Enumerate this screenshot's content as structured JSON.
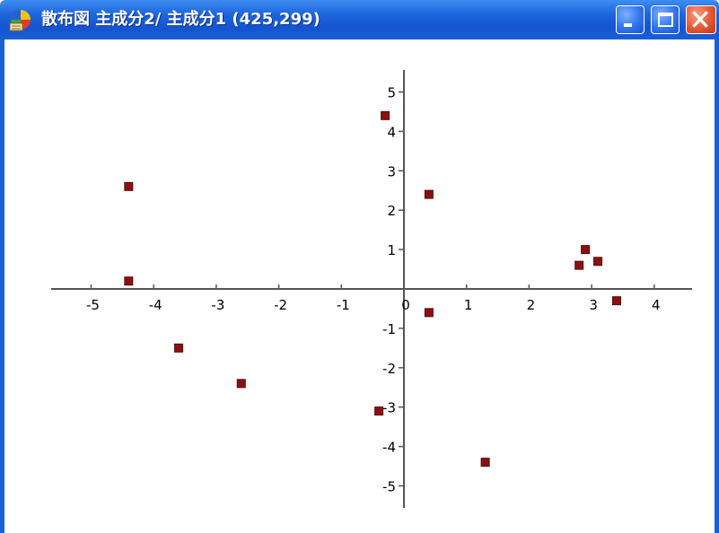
{
  "window": {
    "title": "散布図  主成分2/ 主成分1 (425,299)",
    "title_bar_color": "#1a5fd6",
    "icon": "scatter-app-icon",
    "controls": [
      "minimize-icon",
      "maximize-icon",
      "close-icon"
    ]
  },
  "chart_data": {
    "type": "scatter",
    "title": "",
    "xlabel": "",
    "ylabel": "",
    "xlim": [
      -5.8,
      4.5
    ],
    "ylim": [
      -5.8,
      5.5
    ],
    "x_ticks": [
      -5,
      -4,
      -3,
      -2,
      -1,
      0,
      1,
      2,
      3,
      4
    ],
    "y_ticks": [
      -5,
      -4,
      -3,
      -2,
      -1,
      1,
      2,
      3,
      4,
      5
    ],
    "grid": false,
    "marker": "square",
    "marker_color": "#8b1010",
    "points": [
      {
        "x": -0.3,
        "y": 4.4
      },
      {
        "x": -4.4,
        "y": 2.6
      },
      {
        "x": 0.4,
        "y": 2.4
      },
      {
        "x": -4.4,
        "y": 0.2
      },
      {
        "x": 2.9,
        "y": 1.0
      },
      {
        "x": 3.1,
        "y": 0.7
      },
      {
        "x": 2.8,
        "y": 0.6
      },
      {
        "x": 3.4,
        "y": -0.3
      },
      {
        "x": 0.4,
        "y": -0.6
      },
      {
        "x": -3.6,
        "y": -1.5
      },
      {
        "x": -2.6,
        "y": -2.4
      },
      {
        "x": -0.4,
        "y": -3.1
      },
      {
        "x": 1.3,
        "y": -4.4
      }
    ]
  }
}
